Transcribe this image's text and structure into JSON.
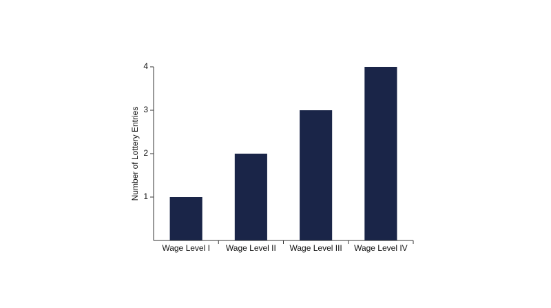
{
  "chart_data": {
    "type": "bar",
    "y_label": "Number of Lottery Entries",
    "categories": [
      "Wage Level I",
      "Wage Level II",
      "Wage Level III",
      "Wage Level IV"
    ],
    "values": [
      1,
      2,
      3,
      4
    ],
    "color": "#1a2548",
    "ylim": [
      0,
      4
    ],
    "yticks": [
      1,
      2,
      3,
      4
    ],
    "grid": false
  }
}
